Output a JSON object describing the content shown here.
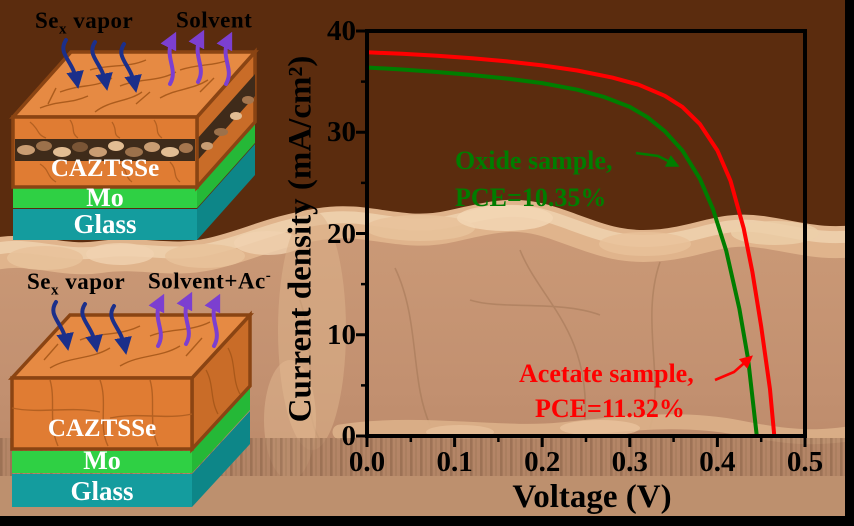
{
  "colors": {
    "sky": "#5b2c0e",
    "sem_base": "#c29070",
    "sem_ridge": "#e0b48c",
    "sem_ridge_highlight": "#eed0ad",
    "mo_column_dark": "#8f674c",
    "edge_black": "#000000",
    "curve_red": "#ff0000",
    "curve_green": "#007d00",
    "navy_arrow": "#1b2f8a",
    "purple_arrow": "#7c3fd0",
    "box_orange_front": "#e07c33",
    "box_orange_top": "#e68a43",
    "box_orange_side": "#c96c28",
    "box_border": "#8a4413",
    "void_band": "#3f2b1a",
    "mo_green": "#2fd044",
    "mo_green_side": "#25b837",
    "glass_teal": "#149c9e",
    "glass_teal_side": "#0d8688",
    "axis": "#000000"
  },
  "schematic_top": {
    "vapor_label": {
      "prefix": "Se",
      "sub": "x",
      "suffix": " vapor"
    },
    "solvent_label": {
      "text": "Solvent",
      "sup": ""
    },
    "layers": {
      "absorber": "CAZTSSe",
      "back_contact": "Mo",
      "substrate": "Glass"
    }
  },
  "schematic_bottom": {
    "vapor_label": {
      "prefix": "Se",
      "sub": "x",
      "suffix": " vapor"
    },
    "solvent_label": {
      "text": "Solvent+Ac",
      "sup": "-"
    },
    "layers": {
      "absorber": "CAZTSSe",
      "back_contact": "Mo",
      "substrate": "Glass"
    }
  },
  "chart_data": {
    "type": "line",
    "title": "",
    "xlabel": "Voltage (V)",
    "ylabel": "Current density (mA/cm²)",
    "xlim": [
      0.0,
      0.5
    ],
    "ylim": [
      0,
      40
    ],
    "xticks": [
      0.0,
      0.1,
      0.2,
      0.3,
      0.4,
      0.5
    ],
    "xtick_labels": [
      "0.0",
      "0.1",
      "0.2",
      "0.3",
      "0.4",
      "0.5"
    ],
    "yticks": [
      0,
      10,
      20,
      30,
      40
    ],
    "ytick_labels": [
      "0",
      "10",
      "20",
      "30",
      "40"
    ],
    "x_minor_step": 0.05,
    "y_minor_step": 5,
    "grid": false,
    "legend_position": "inline-annotations",
    "series": [
      {
        "name": "Oxide sample",
        "pce": "10.35%",
        "voc_V": 0.445,
        "jsc_mA_cm2": 36.4,
        "color": "#007d00",
        "points": [
          [
            0.0,
            36.4
          ],
          [
            0.04,
            36.2
          ],
          [
            0.08,
            35.95
          ],
          [
            0.12,
            35.65
          ],
          [
            0.16,
            35.3
          ],
          [
            0.2,
            34.85
          ],
          [
            0.24,
            34.2
          ],
          [
            0.27,
            33.5
          ],
          [
            0.3,
            32.5
          ],
          [
            0.32,
            31.5
          ],
          [
            0.34,
            30.1
          ],
          [
            0.36,
            28.2
          ],
          [
            0.38,
            25.4
          ],
          [
            0.395,
            22.4
          ],
          [
            0.41,
            18.3
          ],
          [
            0.425,
            12.6
          ],
          [
            0.435,
            7.6
          ],
          [
            0.445,
            0.0
          ]
        ]
      },
      {
        "name": "Acetate sample",
        "pce": "11.32%",
        "voc_V": 0.465,
        "jsc_mA_cm2": 37.9,
        "color": "#ff0000",
        "points": [
          [
            0.0,
            37.9
          ],
          [
            0.04,
            37.75
          ],
          [
            0.08,
            37.55
          ],
          [
            0.12,
            37.3
          ],
          [
            0.16,
            37.0
          ],
          [
            0.2,
            36.6
          ],
          [
            0.24,
            36.1
          ],
          [
            0.28,
            35.4
          ],
          [
            0.31,
            34.7
          ],
          [
            0.34,
            33.6
          ],
          [
            0.36,
            32.5
          ],
          [
            0.38,
            30.8
          ],
          [
            0.4,
            28.2
          ],
          [
            0.415,
            25.2
          ],
          [
            0.43,
            20.5
          ],
          [
            0.44,
            16.2
          ],
          [
            0.45,
            10.8
          ],
          [
            0.46,
            4.6
          ],
          [
            0.465,
            0.0
          ]
        ]
      }
    ],
    "annotations": [
      {
        "line1": "Oxide sample,",
        "line2": "PCE=10.35%",
        "color": "#007d00"
      },
      {
        "line1": "Acetate sample,",
        "line2": "PCE=11.32%",
        "color": "#ff0000"
      }
    ]
  }
}
